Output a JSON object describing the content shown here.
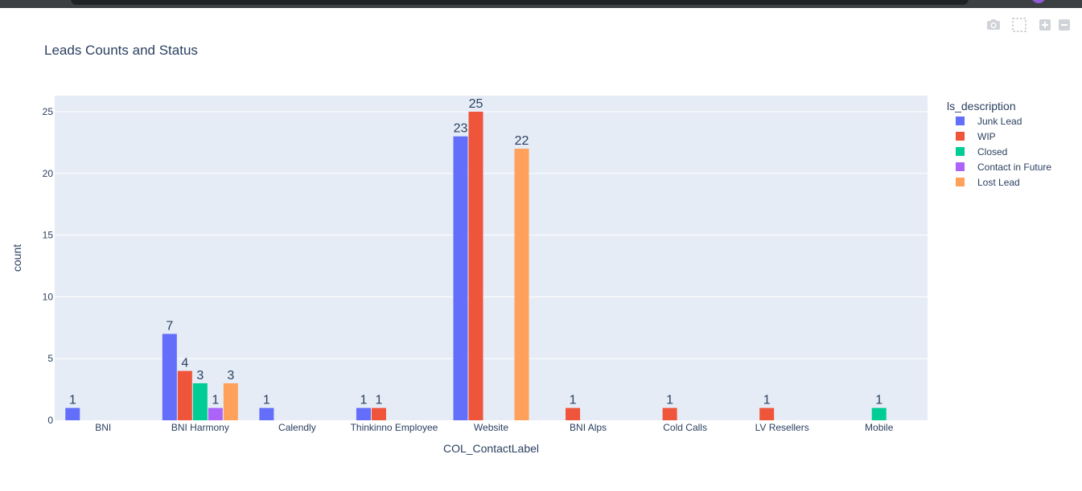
{
  "window": {
    "toolbar_icons": [
      "camera-icon",
      "box-select-icon",
      "zoom-in-icon",
      "zoom-out-icon"
    ]
  },
  "chart_data": {
    "type": "bar",
    "barmode": "group",
    "title": "Leads Counts and Status",
    "xlabel": "COL_ContactLabel",
    "ylabel": "count",
    "ylim": [
      0,
      26.3
    ],
    "yticks": [
      0,
      5,
      10,
      15,
      20,
      25
    ],
    "grid": true,
    "legend_title": "ls_description",
    "legend_position": "right",
    "categories": [
      "BNI",
      "BNI Harmony",
      "Calendly",
      "Thinkinno Employee",
      "Website",
      "BNI Alps",
      "Cold Calls",
      "LV Resellers",
      "Mobile"
    ],
    "series": [
      {
        "name": "Junk Lead",
        "color": "#636efa",
        "values": [
          1,
          7,
          1,
          1,
          23,
          null,
          null,
          null,
          null
        ]
      },
      {
        "name": "WIP",
        "color": "#ef553b",
        "values": [
          null,
          4,
          null,
          1,
          25,
          1,
          1,
          1,
          null
        ]
      },
      {
        "name": "Closed",
        "color": "#00cc96",
        "values": [
          null,
          3,
          null,
          null,
          null,
          null,
          null,
          null,
          1
        ]
      },
      {
        "name": "Contact in Future",
        "color": "#ab63fa",
        "values": [
          null,
          1,
          null,
          null,
          null,
          null,
          null,
          null,
          null
        ]
      },
      {
        "name": "Lost Lead",
        "color": "#ffa15a",
        "values": [
          null,
          3,
          null,
          null,
          22,
          null,
          null,
          null,
          null
        ]
      }
    ]
  }
}
